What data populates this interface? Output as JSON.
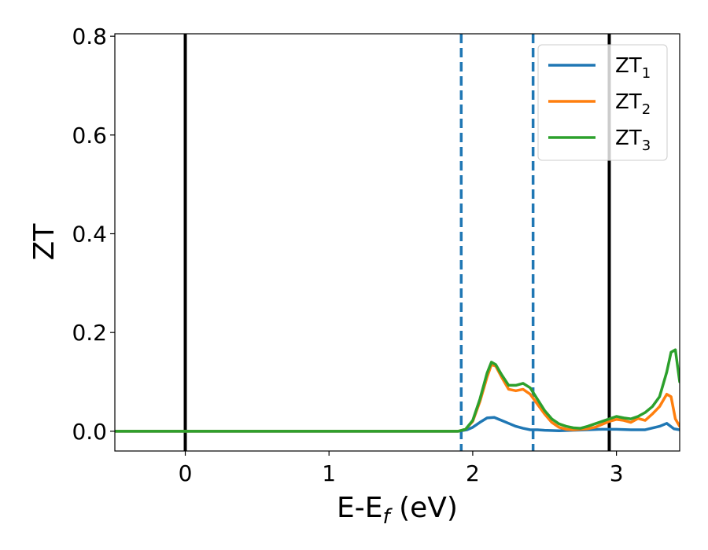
{
  "chart_data": {
    "type": "line",
    "title": "",
    "xlabel_main": "E-E",
    "xlabel_sub": "f",
    "xlabel_unit": " (eV)",
    "ylabel": "ZT",
    "xlim": [
      -0.49,
      3.44
    ],
    "ylim": [
      -0.04,
      0.805
    ],
    "xticks": [
      0,
      1,
      2,
      3
    ],
    "xtick_labels": [
      "0",
      "1",
      "2",
      "3"
    ],
    "yticks": [
      0.0,
      0.2,
      0.4,
      0.6,
      0.8
    ],
    "ytick_labels": [
      "0.0",
      "0.2",
      "0.4",
      "0.6",
      "0.8"
    ],
    "grid": false,
    "legend_position": "top-right",
    "vlines_solid": [
      0,
      2.95
    ],
    "vlines_dashed": [
      1.92,
      2.42
    ],
    "vline_solid_color": "#000000",
    "vline_dashed_color": "#1f77b4",
    "series": [
      {
        "label_main": "ZT",
        "label_sub": "1",
        "color": "#1f77b4",
        "x": [
          -0.49,
          1.9,
          1.96,
          2.0,
          2.05,
          2.1,
          2.15,
          2.2,
          2.25,
          2.3,
          2.35,
          2.4,
          2.45,
          2.5,
          2.6,
          2.7,
          2.8,
          2.9,
          2.95,
          3.0,
          3.1,
          3.2,
          3.3,
          3.35,
          3.4,
          3.44
        ],
        "y": [
          0.0,
          0.0,
          0.003,
          0.008,
          0.018,
          0.027,
          0.028,
          0.022,
          0.016,
          0.01,
          0.006,
          0.003,
          0.003,
          0.002,
          0.001,
          0.002,
          0.003,
          0.004,
          0.004,
          0.004,
          0.003,
          0.003,
          0.01,
          0.016,
          0.005,
          0.003
        ]
      },
      {
        "label_main": "ZT",
        "label_sub": "2",
        "color": "#ff7f0e",
        "x": [
          -0.49,
          1.9,
          1.95,
          2.0,
          2.05,
          2.1,
          2.13,
          2.16,
          2.2,
          2.25,
          2.3,
          2.35,
          2.4,
          2.45,
          2.5,
          2.55,
          2.6,
          2.65,
          2.7,
          2.75,
          2.8,
          2.85,
          2.9,
          2.95,
          3.0,
          3.05,
          3.1,
          3.15,
          3.2,
          3.25,
          3.3,
          3.35,
          3.38,
          3.41,
          3.44
        ],
        "y": [
          0.0,
          0.0,
          0.004,
          0.02,
          0.06,
          0.11,
          0.135,
          0.132,
          0.11,
          0.085,
          0.082,
          0.085,
          0.075,
          0.055,
          0.035,
          0.018,
          0.008,
          0.004,
          0.003,
          0.004,
          0.005,
          0.008,
          0.014,
          0.02,
          0.024,
          0.022,
          0.018,
          0.026,
          0.022,
          0.035,
          0.05,
          0.075,
          0.07,
          0.025,
          0.01
        ]
      },
      {
        "label_main": "ZT",
        "label_sub": "3",
        "color": "#2ca02c",
        "x": [
          -0.49,
          1.9,
          1.95,
          2.0,
          2.05,
          2.1,
          2.13,
          2.16,
          2.2,
          2.25,
          2.3,
          2.35,
          2.4,
          2.45,
          2.5,
          2.55,
          2.6,
          2.65,
          2.7,
          2.75,
          2.8,
          2.85,
          2.9,
          2.95,
          3.0,
          3.05,
          3.1,
          3.15,
          3.2,
          3.25,
          3.3,
          3.35,
          3.38,
          3.41,
          3.44
        ],
        "y": [
          0.0,
          0.0,
          0.004,
          0.022,
          0.065,
          0.118,
          0.14,
          0.135,
          0.115,
          0.093,
          0.093,
          0.097,
          0.088,
          0.065,
          0.042,
          0.025,
          0.015,
          0.01,
          0.007,
          0.006,
          0.01,
          0.015,
          0.02,
          0.025,
          0.03,
          0.027,
          0.025,
          0.03,
          0.038,
          0.05,
          0.07,
          0.12,
          0.16,
          0.165,
          0.1
        ]
      }
    ]
  }
}
